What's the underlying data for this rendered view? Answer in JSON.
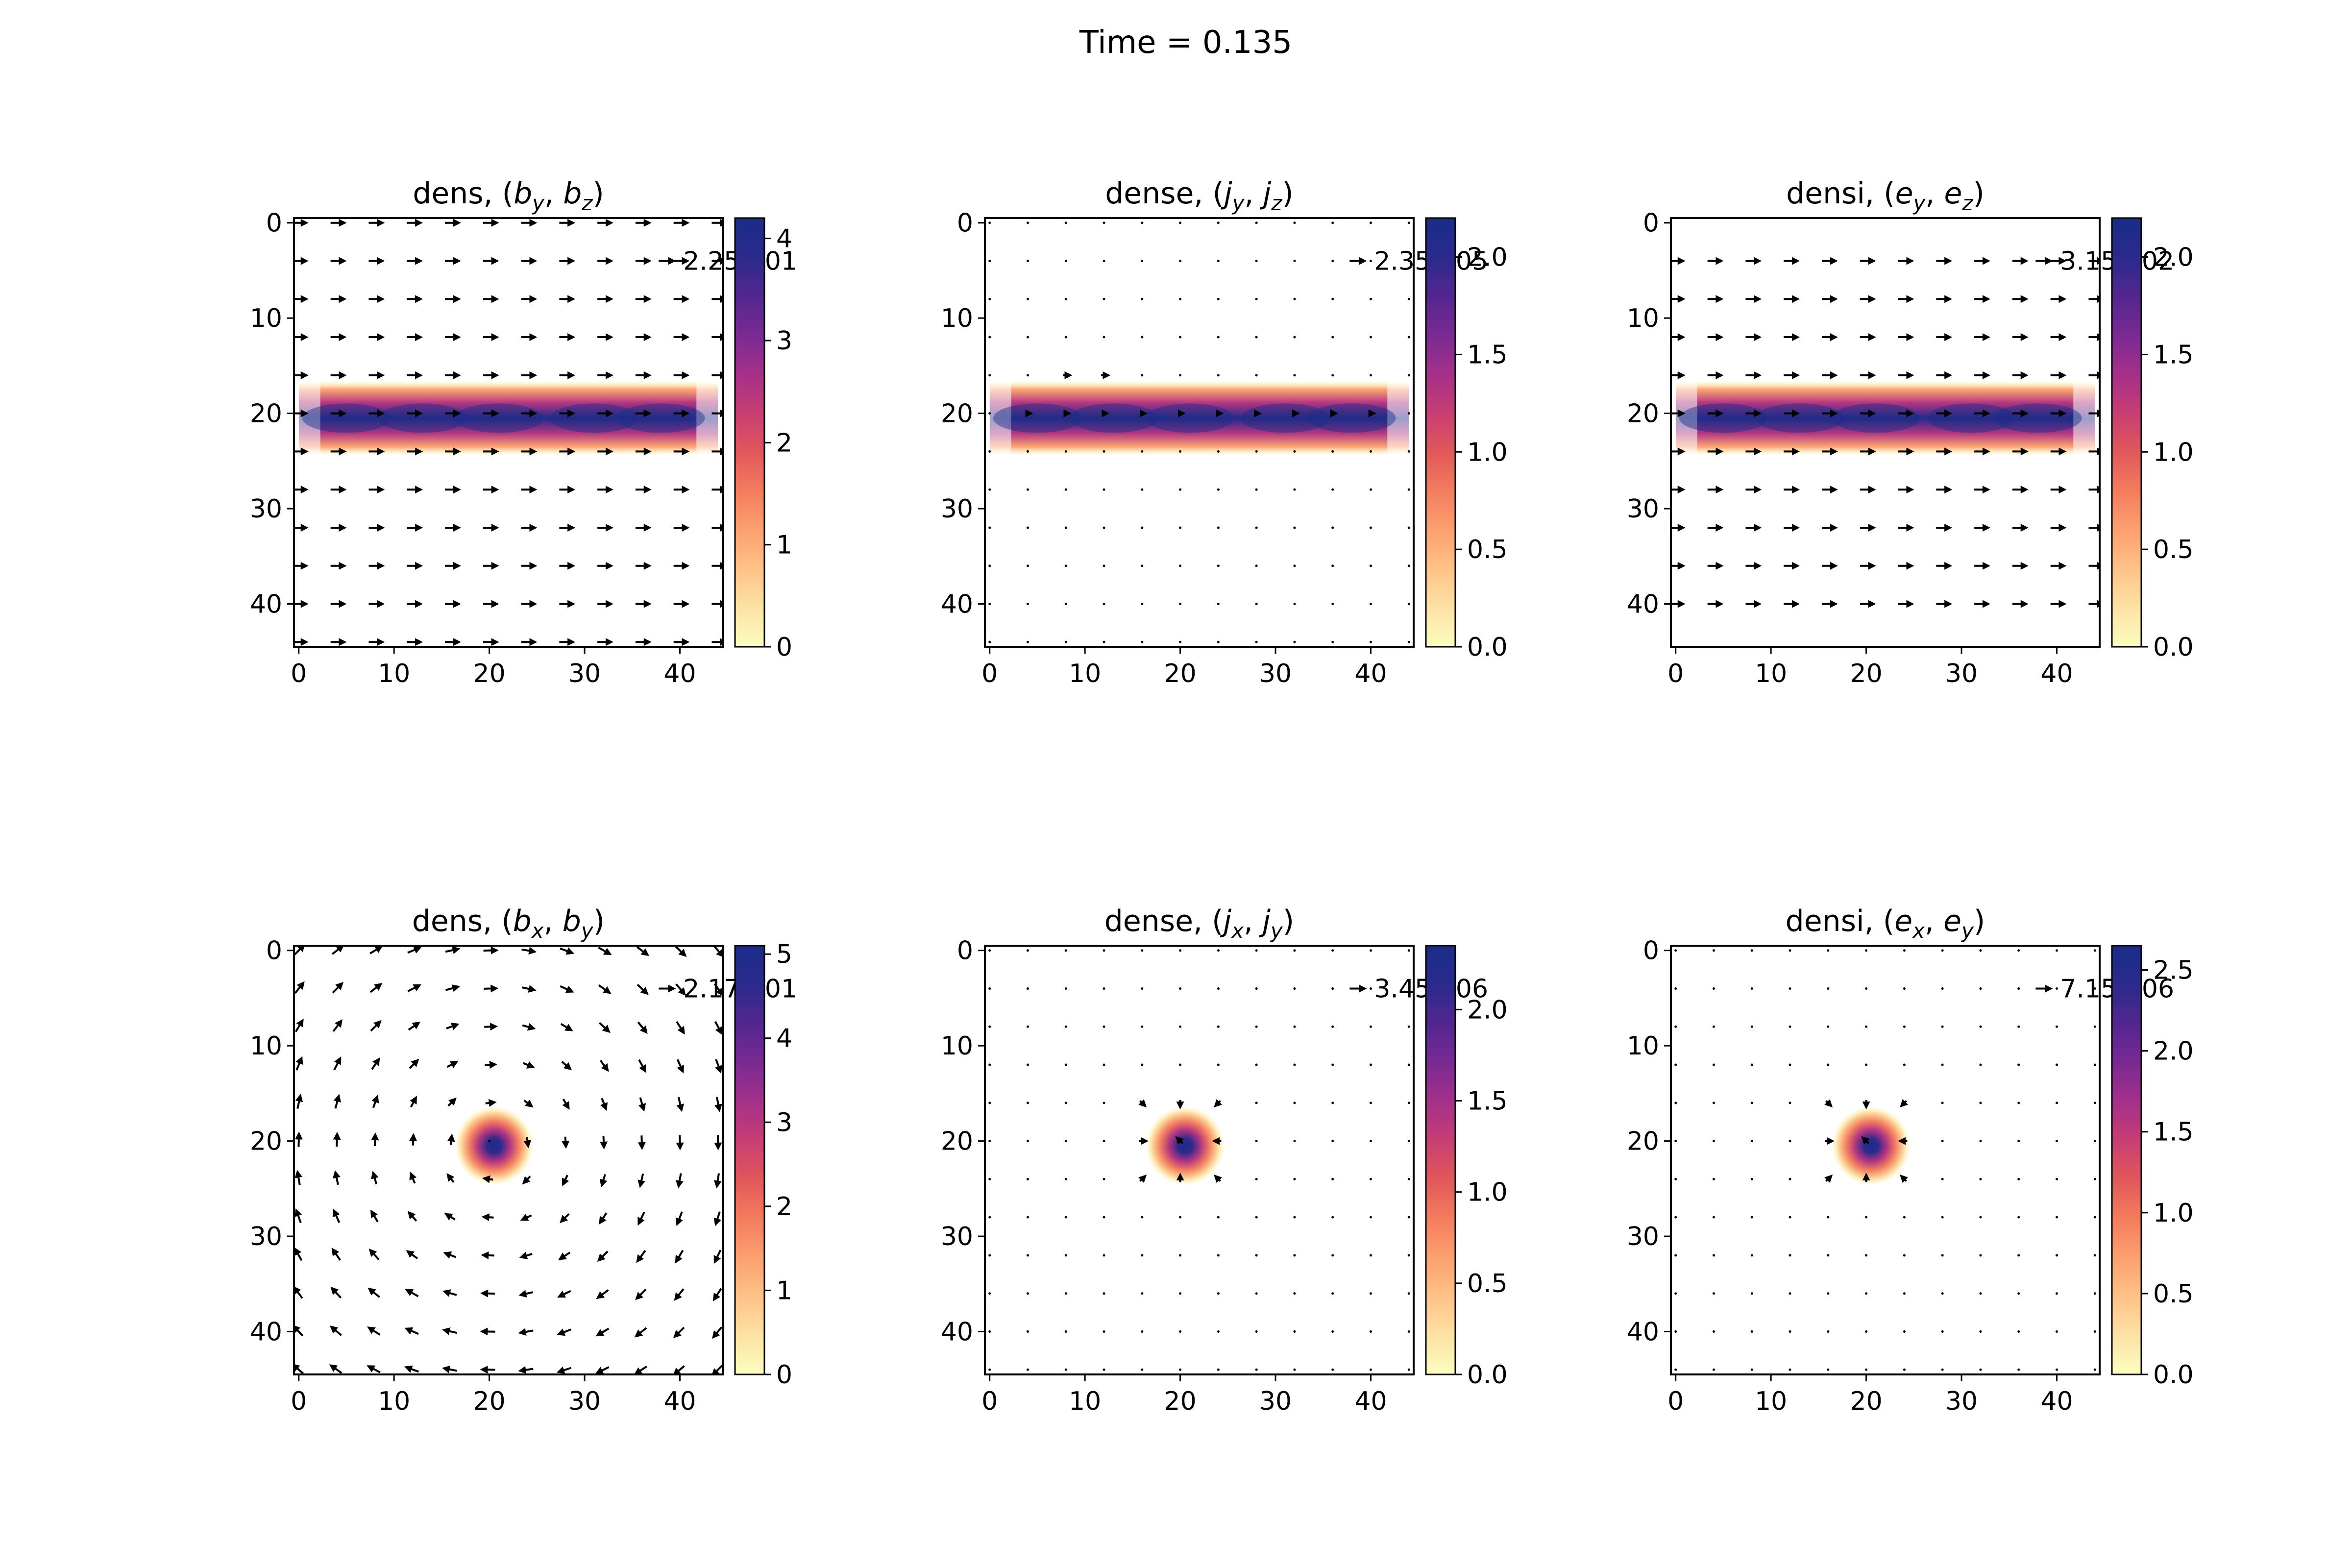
{
  "figure": {
    "suptitle": "Time = 0.135"
  },
  "chart_data": [
    {
      "type": "heatmap",
      "id": "p00",
      "title_prefix": "dens,  ",
      "title_vars": [
        "b",
        "y",
        "b",
        "z"
      ],
      "field": "bar",
      "axis": "x",
      "vector": "uniform_x",
      "vmin": 0,
      "vmax": 4.2,
      "cbar_ticks": [
        "0",
        "1",
        "2",
        "3",
        "4"
      ],
      "cbar_values": [
        0,
        1,
        2,
        3,
        4
      ],
      "x_ticks": [
        "0",
        "10",
        "20",
        "30",
        "40"
      ],
      "y_ticks": [
        "0",
        "10",
        "20",
        "30",
        "40"
      ],
      "xlim": [
        -0.5,
        44.5
      ],
      "ylim": [
        44.5,
        -0.5
      ],
      "quiver_key": "2.25e-01",
      "arrow_rows": [
        0,
        4,
        8,
        12,
        16,
        20,
        24,
        28,
        32,
        36,
        40,
        44
      ],
      "arrow_cols": [
        0,
        4,
        8,
        12,
        16,
        20,
        24,
        28,
        32,
        36,
        40,
        44
      ],
      "arrow_scale": 1.0
    },
    {
      "type": "heatmap",
      "id": "p01",
      "title_prefix": "dense, ",
      "title_vars": [
        "j",
        "y",
        "j",
        "z"
      ],
      "field": "bar",
      "axis": "x",
      "vector": "dots_band",
      "vmin": 0,
      "vmax": 2.2,
      "cbar_ticks": [
        "0.0",
        "0.5",
        "1.0",
        "1.5",
        "2.0"
      ],
      "cbar_values": [
        0,
        0.5,
        1.0,
        1.5,
        2.0
      ],
      "x_ticks": [
        "0",
        "10",
        "20",
        "30",
        "40"
      ],
      "y_ticks": [
        "0",
        "10",
        "20",
        "30",
        "40"
      ],
      "xlim": [
        -0.5,
        44.5
      ],
      "ylim": [
        44.5,
        -0.5
      ],
      "quiver_key": "2.35e-05",
      "arrow_rows": [
        0,
        4,
        8,
        12,
        16,
        20,
        24,
        28,
        32,
        36,
        40,
        44
      ],
      "arrow_cols": [
        0,
        4,
        8,
        12,
        16,
        20,
        24,
        28,
        32,
        36,
        40,
        44
      ],
      "arrow_scale": 1.0
    },
    {
      "type": "heatmap",
      "id": "p02",
      "title_prefix": "densi, ",
      "title_vars": [
        "e",
        "y",
        "e",
        "z"
      ],
      "field": "bar",
      "axis": "x",
      "vector": "uniform_x",
      "vmin": 0,
      "vmax": 2.2,
      "cbar_ticks": [
        "0.0",
        "0.5",
        "1.0",
        "1.5",
        "2.0"
      ],
      "cbar_values": [
        0,
        0.5,
        1.0,
        1.5,
        2.0
      ],
      "x_ticks": [
        "0",
        "10",
        "20",
        "30",
        "40"
      ],
      "y_ticks": [
        "0",
        "10",
        "20",
        "30",
        "40"
      ],
      "xlim": [
        -0.5,
        44.5
      ],
      "ylim": [
        44.5,
        -0.5
      ],
      "quiver_key": "3.15e-02",
      "arrow_rows": [
        0,
        4,
        8,
        12,
        16,
        20,
        24,
        28,
        32,
        36,
        40,
        44
      ],
      "arrow_cols": [
        0,
        4,
        8,
        12,
        16,
        20,
        24,
        28,
        32,
        36,
        40,
        44
      ],
      "arrow_scale": 1.0
    },
    {
      "type": "heatmap",
      "id": "p10",
      "title_prefix": "dens,  ",
      "title_vars": [
        "b",
        "x",
        "b",
        "y"
      ],
      "field": "blob",
      "vector": "vortex",
      "vmin": 0,
      "vmax": 5.1,
      "cbar_ticks": [
        "0",
        "1",
        "2",
        "3",
        "4",
        "5"
      ],
      "cbar_values": [
        0,
        1,
        2,
        3,
        4,
        5
      ],
      "x_ticks": [
        "0",
        "10",
        "20",
        "30",
        "40"
      ],
      "y_ticks": [
        "0",
        "10",
        "20",
        "30",
        "40"
      ],
      "xlim": [
        -0.5,
        44.5
      ],
      "ylim": [
        44.5,
        -0.5
      ],
      "quiver_key": "2.17e-01",
      "arrow_rows": [
        0,
        4,
        8,
        12,
        16,
        20,
        24,
        28,
        32,
        36,
        40,
        44
      ],
      "arrow_cols": [
        0,
        4,
        8,
        12,
        16,
        20,
        24,
        28,
        32,
        36,
        40,
        44
      ],
      "arrow_scale": 1.0
    },
    {
      "type": "heatmap",
      "id": "p11",
      "title_prefix": "dense, ",
      "title_vars": [
        "j",
        "x",
        "j",
        "y"
      ],
      "field": "blob",
      "vector": "dots_blob",
      "vmin": 0,
      "vmax": 2.35,
      "cbar_ticks": [
        "0.0",
        "0.5",
        "1.0",
        "1.5",
        "2.0"
      ],
      "cbar_values": [
        0,
        0.5,
        1.0,
        1.5,
        2.0
      ],
      "x_ticks": [
        "0",
        "10",
        "20",
        "30",
        "40"
      ],
      "y_ticks": [
        "0",
        "10",
        "20",
        "30",
        "40"
      ],
      "xlim": [
        -0.5,
        44.5
      ],
      "ylim": [
        44.5,
        -0.5
      ],
      "quiver_key": "3.45e-06",
      "arrow_rows": [
        0,
        4,
        8,
        12,
        16,
        20,
        24,
        28,
        32,
        36,
        40,
        44
      ],
      "arrow_cols": [
        0,
        4,
        8,
        12,
        16,
        20,
        24,
        28,
        32,
        36,
        40,
        44
      ],
      "arrow_scale": 1.0
    },
    {
      "type": "heatmap",
      "id": "p12",
      "title_prefix": "densi, ",
      "title_vars": [
        "e",
        "x",
        "e",
        "y"
      ],
      "field": "blob",
      "vector": "dots_blob",
      "vmin": 0,
      "vmax": 2.65,
      "cbar_ticks": [
        "0.0",
        "0.5",
        "1.0",
        "1.5",
        "2.0",
        "2.5"
      ],
      "cbar_values": [
        0,
        0.5,
        1.0,
        1.5,
        2.0,
        2.5
      ],
      "x_ticks": [
        "0",
        "10",
        "20",
        "30",
        "40"
      ],
      "y_ticks": [
        "0",
        "10",
        "20",
        "30",
        "40"
      ],
      "xlim": [
        -0.5,
        44.5
      ],
      "ylim": [
        44.5,
        -0.5
      ],
      "quiver_key": "7.15e-06",
      "arrow_rows": [
        0,
        4,
        8,
        12,
        16,
        20,
        24,
        28,
        32,
        36,
        40,
        44
      ],
      "arrow_cols": [
        0,
        4,
        8,
        12,
        16,
        20,
        24,
        28,
        32,
        36,
        40,
        44
      ],
      "arrow_scale": 1.0
    }
  ],
  "colors": {
    "colormap": [
      "#fcfdbf",
      "#fde2a5",
      "#fec287",
      "#fca06e",
      "#f37c5e",
      "#e2575a",
      "#c83e73",
      "#a5308a",
      "#7a2a93",
      "#53268f",
      "#2b2a8c",
      "#1a2c88"
    ],
    "arrow": "#000000",
    "axis": "#000000"
  }
}
